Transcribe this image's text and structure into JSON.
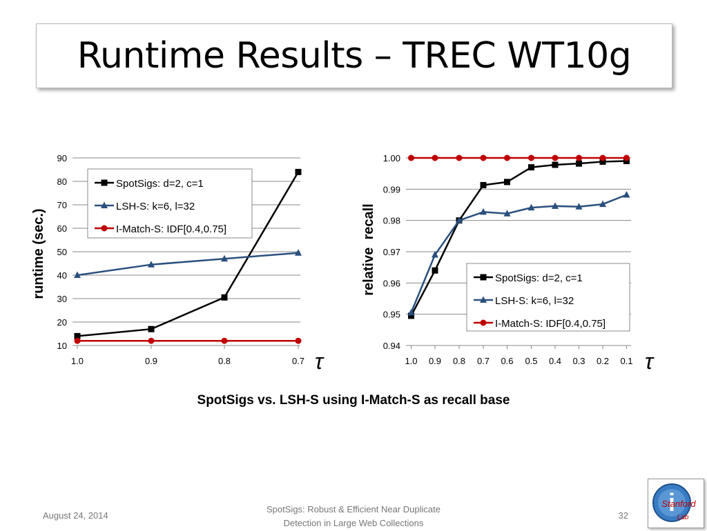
{
  "slide": {
    "title": "Runtime Results – TREC WT10g",
    "caption": "SpotSigs vs. LSH-S using I-Match-S as recall base",
    "date": "August 24, 2014",
    "footer_line1": "SpotSigs: Robust & Efficient Near Duplicate",
    "footer_line2": "Detection in Large Web Collections",
    "page_number": "32",
    "tau_symbol": "τ",
    "logo_text": "Stanford",
    "logo_sub": "Lab",
    "logo_letter": "i"
  },
  "colors": {
    "spotsigs": "#000000",
    "lsh": "#2a4f7e",
    "imatch": "#c00000",
    "grid": "#888888"
  },
  "chart_data": [
    {
      "type": "line",
      "title": "",
      "xlabel": "τ",
      "ylabel": "runtime (sec.)",
      "categories": [
        "1.0",
        "0.9",
        "0.8",
        "0.7"
      ],
      "ylim": [
        10,
        90
      ],
      "yticks": [
        10,
        20,
        30,
        40,
        50,
        60,
        70,
        80,
        90
      ],
      "grid": true,
      "legend_position": "top-left",
      "series": [
        {
          "name": "SpotSigs: d=2, c=1",
          "marker": "square",
          "values": [
            14,
            17,
            30.5,
            84
          ]
        },
        {
          "name": "LSH-S: k=6, l=32",
          "marker": "triangle",
          "values": [
            40,
            44.5,
            47,
            49.5
          ]
        },
        {
          "name": "I-Match-S: IDF[0.4,0.75]",
          "marker": "circle",
          "values": [
            12,
            12,
            12,
            12
          ]
        }
      ]
    },
    {
      "type": "line",
      "title": "",
      "xlabel": "τ",
      "ylabel": "relative  recall",
      "categories": [
        "1.0",
        "0.9",
        "0.8",
        "0.7",
        "0.6",
        "0.5",
        "0.4",
        "0.3",
        "0.2",
        "0.1"
      ],
      "ylim": [
        0.94,
        1.0
      ],
      "yticks": [
        "0.94",
        "0.95",
        "0.96",
        "0.97",
        "0.98",
        "0.99",
        "1.00"
      ],
      "grid": true,
      "legend_position": "bottom-right",
      "series": [
        {
          "name": "SpotSigs: d=2, c=1",
          "marker": "square",
          "values": [
            0.9495,
            0.964,
            0.98,
            0.9913,
            0.9923,
            0.997,
            0.9978,
            0.9982,
            0.9988,
            0.999
          ]
        },
        {
          "name": "LSH-S: k=6, l=32",
          "marker": "triangle",
          "values": [
            0.9505,
            0.969,
            0.98,
            0.9827,
            0.9822,
            0.9841,
            0.9846,
            0.9844,
            0.9852,
            0.9882
          ]
        },
        {
          "name": "I-Match-S: IDF[0.4,0.75]",
          "marker": "circle",
          "values": [
            1.0,
            1.0,
            1.0,
            1.0,
            1.0,
            1.0,
            1.0,
            1.0,
            1.0,
            1.0
          ]
        }
      ]
    }
  ]
}
